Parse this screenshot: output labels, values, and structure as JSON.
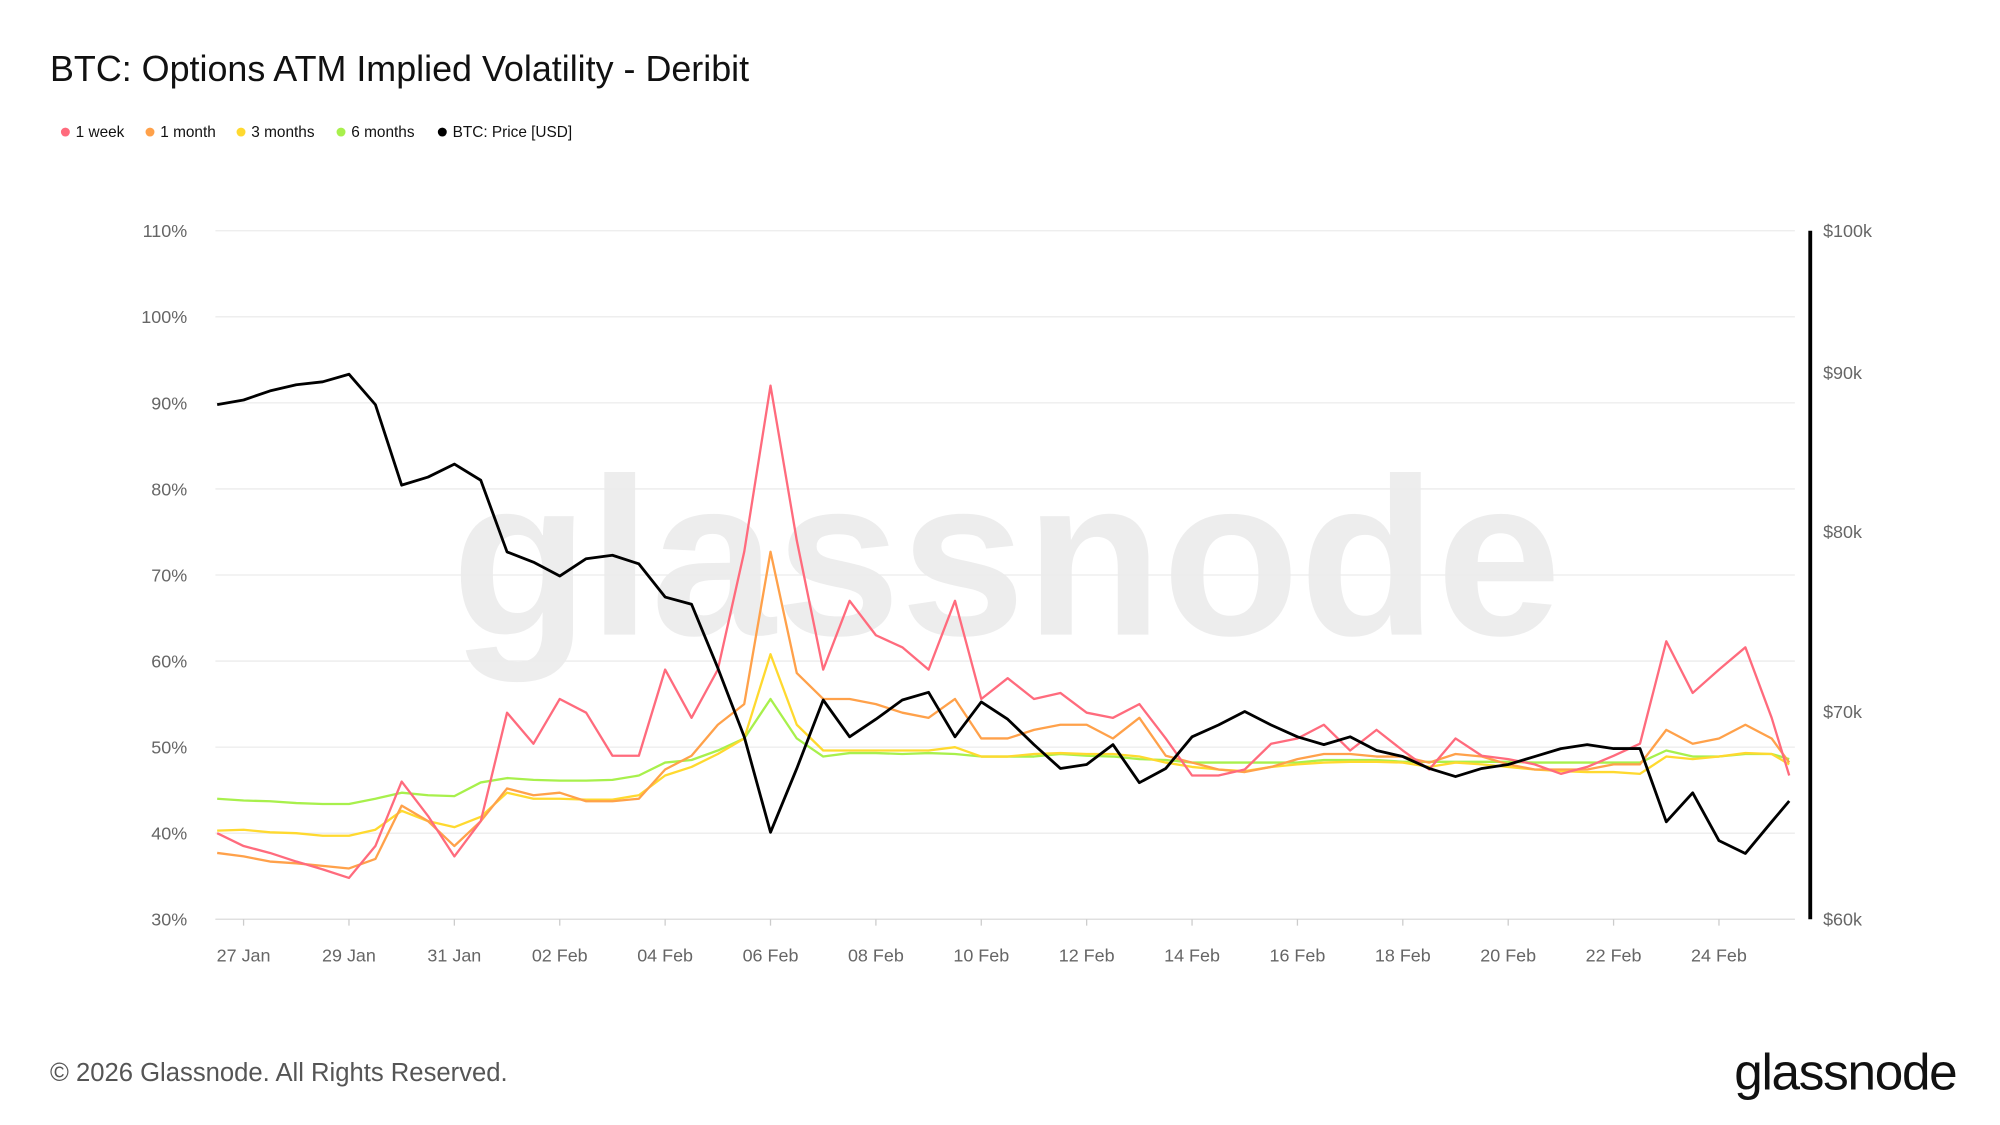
{
  "title": "BTC: Options ATM Implied Volatility - Deribit",
  "footer": {
    "copyright": "© 2026 Glassnode. All Rights Reserved.",
    "logo": "glassnode",
    "watermark": "glassnode"
  },
  "chart_data": {
    "type": "line",
    "title": "BTC: Options ATM Implied Volatility - Deribit",
    "legend_position": "top-left",
    "grid": true,
    "x_tick_labels": [
      "27 Jan",
      "29 Jan",
      "31 Jan",
      "02 Feb",
      "04 Feb",
      "06 Feb",
      "08 Feb",
      "10 Feb",
      "12 Feb",
      "14 Feb",
      "16 Feb",
      "18 Feb",
      "20 Feb",
      "22 Feb",
      "24 Feb"
    ],
    "x_tick_dates": [
      "2026-01-27",
      "2026-01-29",
      "2026-01-31",
      "2026-02-02",
      "2026-02-04",
      "2026-02-06",
      "2026-02-08",
      "2026-02-10",
      "2026-02-12",
      "2026-02-14",
      "2026-02-16",
      "2026-02-18",
      "2026-02-20",
      "2026-02-22",
      "2026-02-24"
    ],
    "y_left": {
      "ylim": [
        30,
        110
      ],
      "ticks": [
        30,
        40,
        50,
        60,
        70,
        80,
        90,
        100,
        110
      ],
      "tick_labels": [
        "30%",
        "40%",
        "50%",
        "60%",
        "70%",
        "80%",
        "90%",
        "100%",
        "110%"
      ]
    },
    "y_right": {
      "scale": "log",
      "ylim": [
        60000,
        100000
      ],
      "ticks": [
        60000,
        70000,
        80000,
        90000,
        100000
      ],
      "tick_labels": [
        "$60k",
        "$70k",
        "$80k",
        "$90k",
        "$100k"
      ]
    },
    "x": [
      "2026-01-26T12:00",
      "2026-01-27T00:00",
      "2026-01-27T12:00",
      "2026-01-28T00:00",
      "2026-01-28T12:00",
      "2026-01-29T00:00",
      "2026-01-29T12:00",
      "2026-01-30T00:00",
      "2026-01-30T12:00",
      "2026-01-31T00:00",
      "2026-01-31T12:00",
      "2026-02-01T00:00",
      "2026-02-01T12:00",
      "2026-02-02T00:00",
      "2026-02-02T12:00",
      "2026-02-03T00:00",
      "2026-02-03T12:00",
      "2026-02-04T00:00",
      "2026-02-04T12:00",
      "2026-02-05T00:00",
      "2026-02-05T12:00",
      "2026-02-06T00:00",
      "2026-02-06T12:00",
      "2026-02-07T00:00",
      "2026-02-07T12:00",
      "2026-02-08T00:00",
      "2026-02-08T12:00",
      "2026-02-09T00:00",
      "2026-02-09T12:00",
      "2026-02-10T00:00",
      "2026-02-10T12:00",
      "2026-02-11T00:00",
      "2026-02-11T12:00",
      "2026-02-12T00:00",
      "2026-02-12T12:00",
      "2026-02-13T00:00",
      "2026-02-13T12:00",
      "2026-02-14T00:00",
      "2026-02-14T12:00",
      "2026-02-15T00:00",
      "2026-02-15T12:00",
      "2026-02-16T00:00",
      "2026-02-16T12:00",
      "2026-02-17T00:00",
      "2026-02-17T12:00",
      "2026-02-18T00:00",
      "2026-02-18T12:00",
      "2026-02-19T00:00",
      "2026-02-19T12:00",
      "2026-02-20T00:00",
      "2026-02-20T12:00",
      "2026-02-21T00:00",
      "2026-02-21T12:00",
      "2026-02-22T00:00",
      "2026-02-22T12:00",
      "2026-02-23T00:00",
      "2026-02-23T12:00",
      "2026-02-24T00:00",
      "2026-02-24T12:00",
      "2026-02-25T00:00",
      "2026-02-25T08:00"
    ],
    "series": [
      {
        "name": "1 week",
        "axis": "left",
        "color": "#ff6b7d",
        "values": [
          40,
          38.5,
          37.7,
          36.7,
          35.8,
          34.8,
          38.5,
          46,
          42,
          37.3,
          41.4,
          54,
          50.4,
          55.6,
          54,
          49,
          49,
          59,
          53.4,
          59,
          72.7,
          92,
          74,
          59,
          67,
          63,
          61.6,
          59,
          67,
          55.6,
          58,
          55.6,
          56.3,
          54,
          53.4,
          55,
          51,
          46.7,
          46.7,
          47.4,
          50.4,
          51,
          52.6,
          49.6,
          52,
          49.6,
          47.4,
          51,
          49,
          48.6,
          48,
          46.9,
          47.7,
          49,
          50.4,
          62.3,
          56.3,
          59,
          61.6,
          53.4,
          46.7
        ]
      },
      {
        "name": "1 month",
        "axis": "left",
        "color": "#ffa14a",
        "values": [
          37.7,
          37.3,
          36.7,
          36.5,
          36.2,
          35.9,
          37,
          43.2,
          41.4,
          38.5,
          41.4,
          45.2,
          44.4,
          44.7,
          43.7,
          43.7,
          44,
          47.4,
          49,
          52.6,
          55,
          72.7,
          58.6,
          55.6,
          55.6,
          55,
          54,
          53.4,
          55.6,
          51,
          51,
          52,
          52.6,
          52.6,
          51,
          53.4,
          49,
          48.2,
          47.4,
          47.1,
          47.7,
          48.6,
          49.2,
          49.2,
          48.9,
          48.9,
          48.2,
          49.2,
          48.9,
          48,
          47.4,
          47.4,
          47.4,
          48,
          48,
          52,
          50.4,
          51,
          52.6,
          51,
          48.2
        ]
      },
      {
        "name": "3 months",
        "axis": "left",
        "color": "#ffd92f",
        "values": [
          40.3,
          40.4,
          40.1,
          40,
          39.7,
          39.7,
          40.4,
          42.6,
          41.4,
          40.7,
          41.9,
          44.7,
          44,
          44,
          43.9,
          43.9,
          44.4,
          46.7,
          47.7,
          49.2,
          51,
          60.8,
          52.6,
          49.6,
          49.6,
          49.6,
          49.6,
          49.6,
          50,
          48.9,
          48.9,
          49.2,
          49.3,
          49.2,
          49.2,
          48.9,
          48.2,
          47.7,
          47.4,
          47.2,
          47.7,
          48,
          48.2,
          48.3,
          48.3,
          48.2,
          47.7,
          48.2,
          48,
          47.7,
          47.4,
          47.2,
          47.1,
          47.1,
          46.9,
          48.9,
          48.6,
          48.9,
          49.3,
          49.2,
          48
        ]
      },
      {
        "name": "6 months",
        "axis": "left",
        "color": "#a8f04c",
        "values": [
          44,
          43.8,
          43.7,
          43.5,
          43.4,
          43.4,
          44,
          44.7,
          44.4,
          44.3,
          45.9,
          46.4,
          46.2,
          46.1,
          46.1,
          46.2,
          46.7,
          48.2,
          48.5,
          49.6,
          51,
          55.6,
          51,
          48.9,
          49.3,
          49.3,
          49.2,
          49.3,
          49.2,
          48.9,
          48.9,
          48.9,
          49.2,
          49,
          48.9,
          48.6,
          48.5,
          48.2,
          48.2,
          48.2,
          48.2,
          48.2,
          48.5,
          48.5,
          48.5,
          48.3,
          48.3,
          48.3,
          48.3,
          48.3,
          48.2,
          48.2,
          48.2,
          48.2,
          48.2,
          49.6,
          48.9,
          48.9,
          49.2,
          49.2,
          48.6
        ]
      },
      {
        "name": "BTC: Price [USD]",
        "axis": "right",
        "color": "#000000",
        "values": [
          87900,
          88200,
          88800,
          89200,
          89400,
          89900,
          87900,
          82800,
          83300,
          84100,
          83100,
          78800,
          78200,
          77400,
          78400,
          78600,
          78100,
          76200,
          75800,
          72300,
          68700,
          64000,
          67100,
          70600,
          68700,
          69600,
          70600,
          71000,
          68700,
          70500,
          69600,
          68300,
          67100,
          67300,
          68300,
          66400,
          67100,
          68700,
          69300,
          70000,
          69300,
          68700,
          68300,
          68700,
          68000,
          67700,
          67100,
          66700,
          67100,
          67300,
          67700,
          68100,
          68300,
          68100,
          68100,
          64500,
          65900,
          63600,
          63000,
          64500,
          65500
        ]
      }
    ]
  }
}
